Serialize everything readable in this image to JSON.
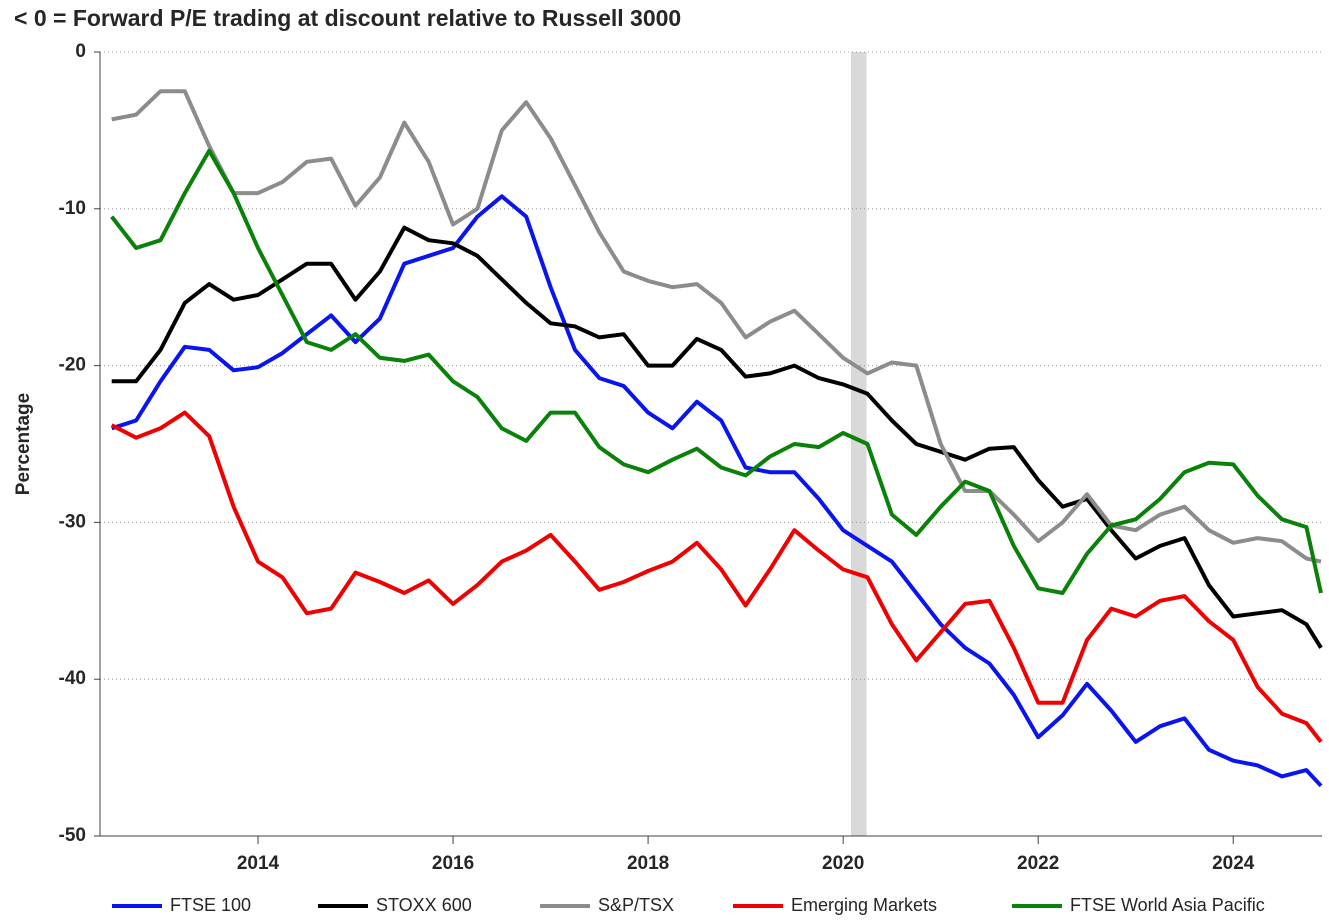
{
  "chart_data": {
    "type": "line",
    "title": "< 0 = Forward P/E trading at discount relative to Russell 3000",
    "y_label": "Percentage",
    "xlim": [
      2012.38,
      2024.91
    ],
    "xticks": [
      2014,
      2016,
      2018,
      2020,
      2022,
      2024
    ],
    "ylim": [
      -50,
      0
    ],
    "yticks": [
      0,
      -10,
      -20,
      -30,
      -40,
      -50
    ],
    "grid": true,
    "shaded_region": [
      2020.08,
      2020.24
    ],
    "x": [
      2012.5,
      2012.75,
      2013,
      2013.25,
      2013.5,
      2013.75,
      2014,
      2014.25,
      2014.5,
      2014.75,
      2015,
      2015.25,
      2015.5,
      2015.75,
      2016,
      2016.25,
      2016.5,
      2016.75,
      2017,
      2017.25,
      2017.5,
      2017.75,
      2018,
      2018.25,
      2018.5,
      2018.75,
      2019,
      2019.25,
      2019.5,
      2019.75,
      2020,
      2020.25,
      2020.5,
      2020.75,
      2021,
      2021.25,
      2021.5,
      2021.75,
      2022,
      2022.25,
      2022.5,
      2022.75,
      2023,
      2023.25,
      2023.5,
      2023.75,
      2024,
      2024.25,
      2024.5,
      2024.75,
      2024.9
    ],
    "series": [
      {
        "name": "FTSE 100",
        "color": "#0a14f0",
        "values": [
          -24,
          -23.5,
          -21,
          -18.8,
          -19,
          -20.3,
          -20.1,
          -19.2,
          -18,
          -16.8,
          -18.5,
          -17,
          -13.5,
          -13,
          -12.5,
          -10.5,
          -9.2,
          -10.5,
          -15,
          -19,
          -20.8,
          -21.3,
          -23,
          -24,
          -22.3,
          -23.5,
          -26.5,
          -26.8,
          -26.8,
          -28.5,
          -30.5,
          -31.5,
          -32.5,
          -34.5,
          -36.5,
          -38,
          -39,
          -41,
          -43.7,
          -42.3,
          -40.3,
          -42,
          -44,
          -43,
          -42.5,
          -44.5,
          -45.2,
          -45.5,
          -46.2,
          -45.8,
          -46.8
        ]
      },
      {
        "name": "STOXX 600",
        "color": "#000000",
        "values": [
          -21,
          -21,
          -19,
          -16,
          -14.8,
          -15.8,
          -15.5,
          -14.5,
          -13.5,
          -13.5,
          -15.8,
          -14,
          -11.2,
          -12,
          -12.2,
          -13,
          -14.5,
          -16,
          -17.3,
          -17.5,
          -18.2,
          -18,
          -20,
          -20,
          -18.3,
          -19,
          -20.7,
          -20.5,
          -20,
          -20.8,
          -21.2,
          -21.8,
          -23.5,
          -25,
          -25.5,
          -26,
          -25.3,
          -25.2,
          -27.3,
          -29,
          -28.5,
          -30.5,
          -32.3,
          -31.5,
          -31,
          -34,
          -36,
          -35.8,
          -35.6,
          -36.5,
          -38
        ]
      },
      {
        "name": "S&P/TSX",
        "color": "#8c8c8c",
        "values": [
          -4.3,
          -4,
          -2.5,
          -2.5,
          -6,
          -9,
          -9,
          -8.3,
          -7,
          -6.8,
          -9.8,
          -8,
          -4.5,
          -7,
          -11,
          -10,
          -5,
          -3.2,
          -5.5,
          -8.5,
          -11.5,
          -14,
          -14.6,
          -15,
          -14.8,
          -16,
          -18.2,
          -17.2,
          -16.5,
          -18,
          -19.5,
          -20.5,
          -19.8,
          -20,
          -25,
          -28,
          -28,
          -29.5,
          -31.2,
          -30,
          -28.2,
          -30.2,
          -30.5,
          -29.5,
          -29,
          -30.5,
          -31.3,
          -31,
          -31.2,
          -32.3,
          -32.5
        ]
      },
      {
        "name": "Emerging Markets",
        "color": "#f00000",
        "values": [
          -23.8,
          -24.6,
          -24,
          -23,
          -24.5,
          -29,
          -32.5,
          -33.5,
          -35.8,
          -35.5,
          -33.2,
          -33.8,
          -34.5,
          -33.7,
          -35.2,
          -34,
          -32.5,
          -31.8,
          -30.8,
          -32.5,
          -34.3,
          -33.8,
          -33.1,
          -32.5,
          -31.3,
          -33,
          -35.3,
          -33,
          -30.5,
          -31.8,
          -33,
          -33.5,
          -36.5,
          -38.8,
          -37,
          -35.2,
          -35,
          -38,
          -41.5,
          -41.5,
          -37.5,
          -35.5,
          -36,
          -35,
          -34.7,
          -36.3,
          -37.5,
          -40.5,
          -42.2,
          -42.8,
          -44
        ]
      },
      {
        "name": "FTSE World Asia Pacific",
        "color": "#0a820a",
        "values": [
          -10.5,
          -12.5,
          -12,
          -9,
          -6.3,
          -9,
          -12.5,
          -15.5,
          -18.5,
          -19,
          -18,
          -19.5,
          -19.7,
          -19.3,
          -21,
          -22,
          -24,
          -24.8,
          -23,
          -23,
          -25.2,
          -26.3,
          -26.8,
          -26,
          -25.3,
          -26.5,
          -27,
          -25.8,
          -25,
          -25.2,
          -24.3,
          -25,
          -29.5,
          -30.8,
          -29,
          -27.4,
          -28,
          -31.5,
          -34.2,
          -34.5,
          -32,
          -30.2,
          -29.8,
          -28.5,
          -26.8,
          -26.2,
          -26.3,
          -28.3,
          -29.8,
          -30.3,
          -34.5
        ]
      }
    ]
  }
}
